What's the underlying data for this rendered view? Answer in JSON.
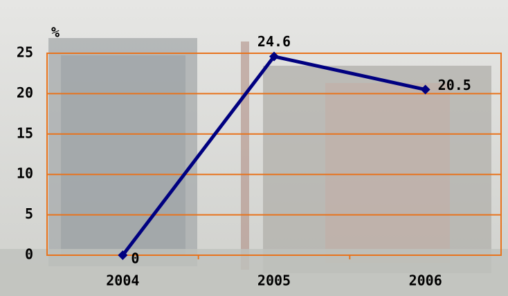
{
  "chart_data": {
    "type": "line",
    "ylabel": "%",
    "categories": [
      "2004",
      "2005",
      "2006"
    ],
    "series": [
      {
        "name": null,
        "color": "#000080",
        "values": [
          0,
          24.6,
          20.5
        ]
      }
    ],
    "ylim": [
      0,
      25
    ],
    "yticks": [
      0,
      5,
      10,
      15,
      20,
      25
    ],
    "grid": true,
    "grid_color": "#e8731c"
  }
}
